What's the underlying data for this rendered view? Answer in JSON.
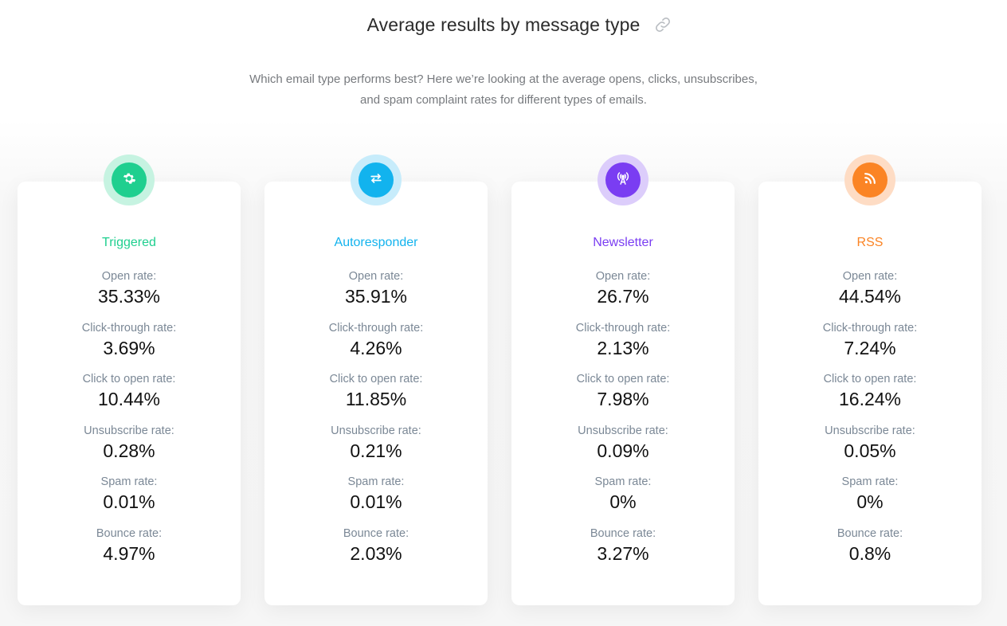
{
  "header": {
    "title": "Average results by message type",
    "subtitle_line1": "Which email type performs best? Here we’re looking at the average opens, clicks, unsubscribes,",
    "subtitle_line2": "and spam complaint rates for different types of emails."
  },
  "metric_labels": {
    "open": "Open rate:",
    "click_through": "Click-through rate:",
    "click_to_open": "Click to open rate:",
    "unsubscribe": "Unsubscribe rate:",
    "spam": "Spam rate:",
    "bounce": "Bounce rate:"
  },
  "cards": [
    {
      "name": "Triggered",
      "icon": "gear-icon",
      "color": "#1fcf8f",
      "ring": "#c6f3e1",
      "open": "35.33%",
      "click_through": "3.69%",
      "click_to_open": "10.44%",
      "unsubscribe": "0.28%",
      "spam": "0.01%",
      "bounce": "4.97%"
    },
    {
      "name": "Autoresponder",
      "icon": "repeat-icon",
      "color": "#12b3ee",
      "ring": "#c7ecfb",
      "open": "35.91%",
      "click_through": "4.26%",
      "click_to_open": "11.85%",
      "unsubscribe": "0.21%",
      "spam": "0.01%",
      "bounce": "2.03%"
    },
    {
      "name": "Newsletter",
      "icon": "broadcast-icon",
      "color": "#7a3df2",
      "ring": "#dccdfb",
      "open": "26.7%",
      "click_through": "2.13%",
      "click_to_open": "7.98%",
      "unsubscribe": "0.09%",
      "spam": "0%",
      "bounce": "3.27%"
    },
    {
      "name": "RSS",
      "icon": "rss-icon",
      "color": "#fb8424",
      "ring": "#fedcc4",
      "open": "44.54%",
      "click_through": "7.24%",
      "click_to_open": "16.24%",
      "unsubscribe": "0.05%",
      "spam": "0%",
      "bounce": "0.8%"
    }
  ]
}
